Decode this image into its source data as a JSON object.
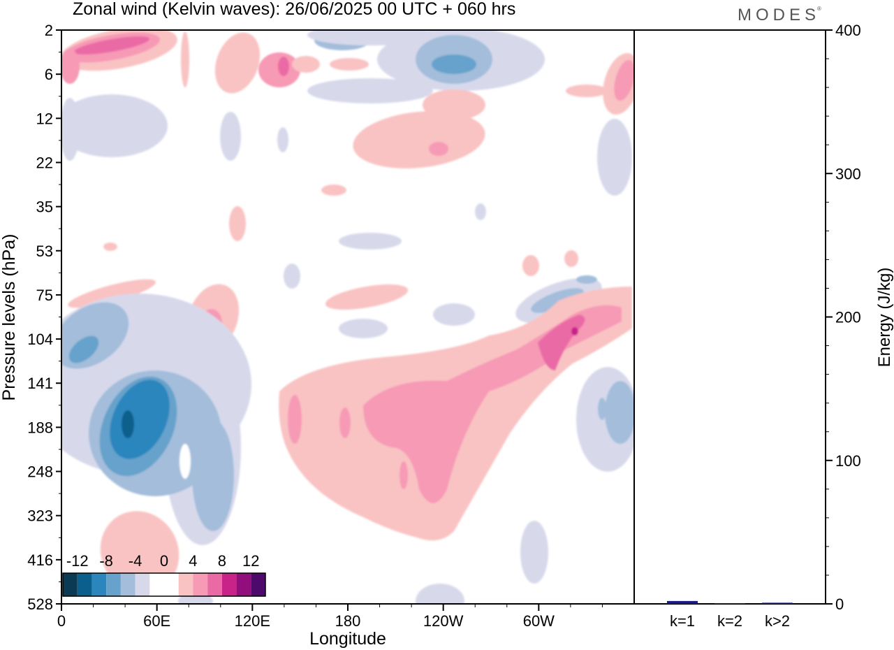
{
  "title": "Zonal wind (Kelvin waves):  26/06/2025  00 UTC  + 060 hrs",
  "brand": "MODES",
  "brand_mark": "®",
  "chart_data": [
    {
      "type": "heatmap",
      "xlabel": "Longitude",
      "ylabel": "Pressure levels (hPa)",
      "x_ticks": [
        "0",
        "60E",
        "120E",
        "180",
        "120W",
        "60W"
      ],
      "y_ticks": [
        "2",
        "6",
        "12",
        "22",
        "35",
        "53",
        "75",
        "104",
        "141",
        "188",
        "248",
        "323",
        "416",
        "528"
      ],
      "colorbar": {
        "labels": [
          "-12",
          "-8",
          "-4",
          "0",
          "4",
          "8",
          "12"
        ],
        "colors": [
          "#0b3a55",
          "#0b5f8c",
          "#2a86bd",
          "#66a2cb",
          "#a3bddb",
          "#d7d9eb",
          "#ffffff",
          "#ffffff",
          "#f9c3c3",
          "#f79ab5",
          "#ea6aa5",
          "#c9238a",
          "#930e7d",
          "#4e0a6b"
        ]
      },
      "features": [
        {
          "name": "negative anomaly core",
          "lon": 40,
          "level": 188,
          "value": -12
        },
        {
          "name": "negative anomaly",
          "lon": 15,
          "level": 116,
          "value": -8
        },
        {
          "name": "negative anomaly",
          "lon": 95,
          "level": 248,
          "value": -6
        },
        {
          "name": "negative anomaly",
          "lon": 225,
          "level": 6,
          "value": -8
        },
        {
          "name": "negative anomaly",
          "lon": 305,
          "level": 92,
          "value": -6
        },
        {
          "name": "negative anomaly",
          "lon": 348,
          "level": 175,
          "value": -6
        },
        {
          "name": "positive anomaly band",
          "lon": 195,
          "level": 170,
          "value": 6
        },
        {
          "name": "positive anomaly core",
          "lon": 318,
          "level": 115,
          "value": 10
        },
        {
          "name": "positive anomaly",
          "lon": 90,
          "level": 104,
          "value": 6
        },
        {
          "name": "positive anomaly",
          "lon": 235,
          "level": 20,
          "value": 6
        },
        {
          "name": "positive anomaly",
          "lon": 30,
          "level": 4,
          "value": 10
        },
        {
          "name": "positive anomaly",
          "lon": 355,
          "level": 8,
          "value": 8
        }
      ]
    },
    {
      "type": "bar",
      "categories": [
        "k=1",
        "k=2",
        "k>2"
      ],
      "values": [
        2,
        0.5,
        0.8
      ],
      "ylabel": "Energy (J/kg)",
      "ylim": [
        0,
        400
      ],
      "y_ticks": [
        "0",
        "100",
        "200",
        "300",
        "400"
      ],
      "bar_color": "#1a1a80"
    }
  ]
}
